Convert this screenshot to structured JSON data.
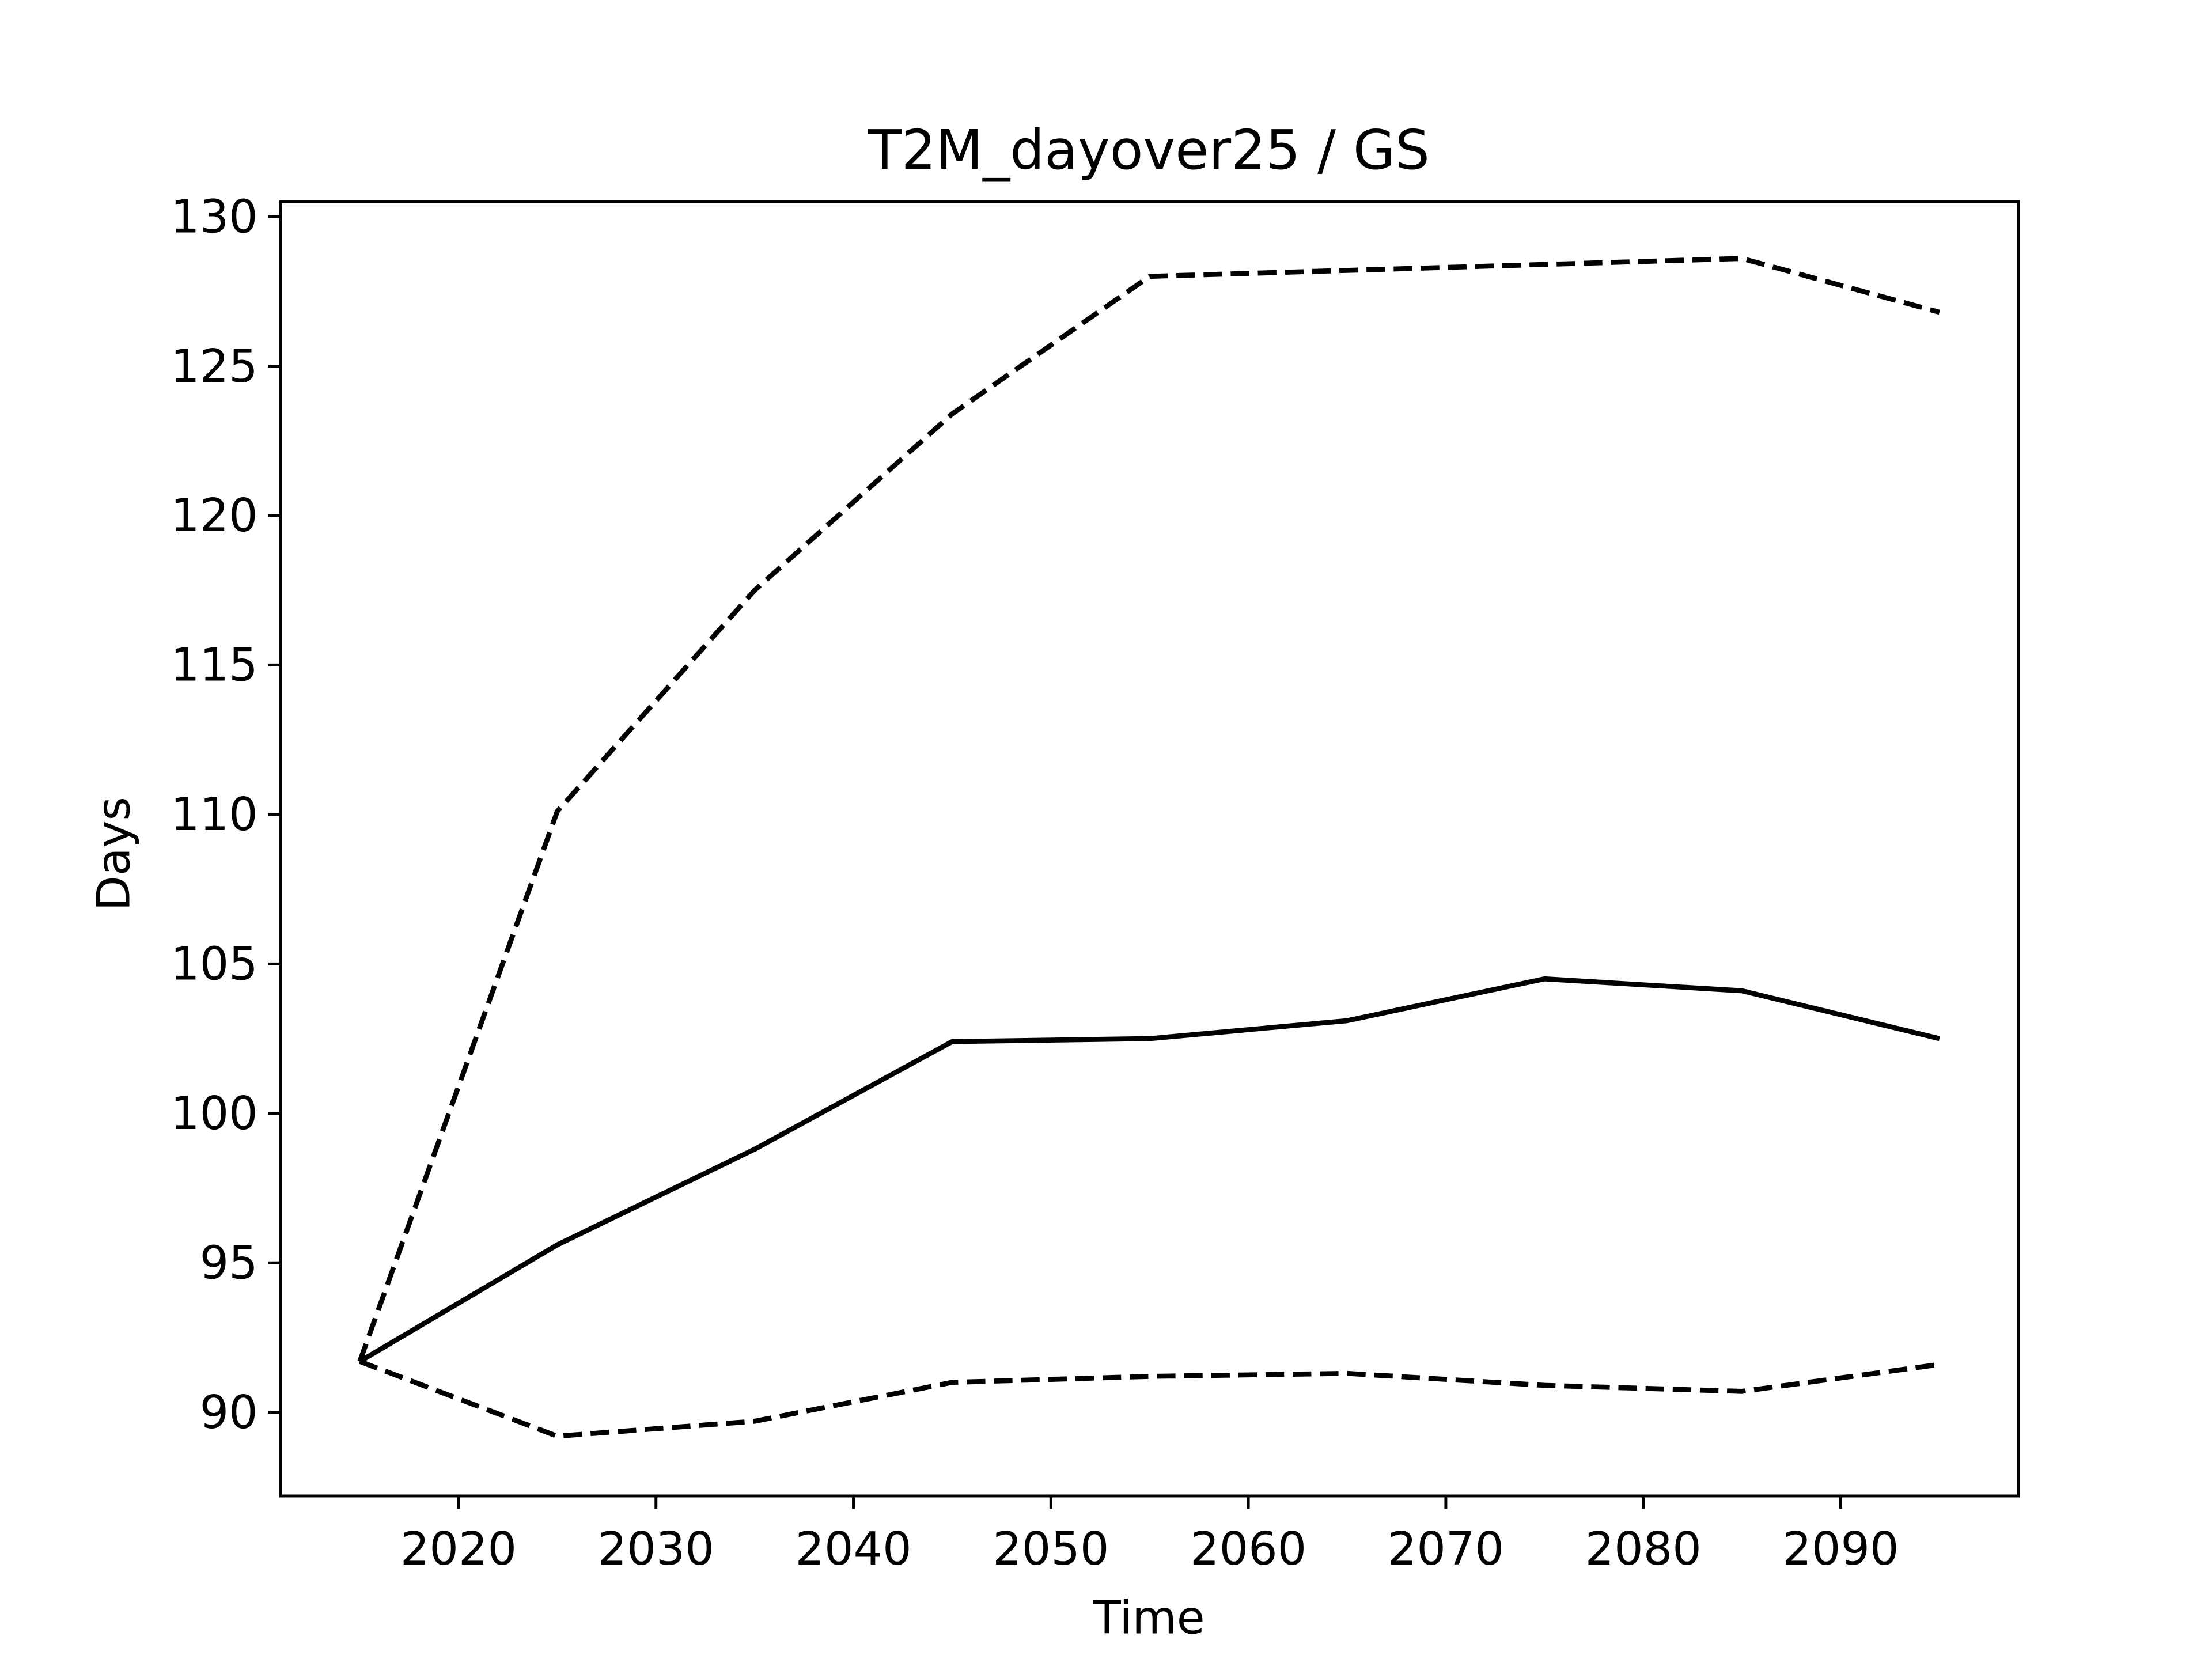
{
  "chart_data": {
    "type": "line",
    "title": "T2M_dayover25 / GS",
    "xlabel": "Time",
    "ylabel": "Days",
    "x": [
      2015,
      2025,
      2035,
      2045,
      2055,
      2065,
      2075,
      2085,
      2095
    ],
    "series": [
      {
        "color": "#000000",
        "linestyle": "solid",
        "values": [
          91.7,
          95.6,
          98.8,
          102.4,
          102.5,
          103.1,
          104.5,
          104.1,
          102.5
        ]
      },
      {
        "color": "#000000",
        "linestyle": "dashed",
        "values": [
          91.7,
          110.1,
          117.5,
          123.4,
          128.0,
          128.2,
          128.4,
          128.6,
          126.8
        ]
      },
      {
        "color": "#000000",
        "linestyle": "dashed",
        "values": [
          91.7,
          89.2,
          89.7,
          91.0,
          91.2,
          91.3,
          90.9,
          90.7,
          91.6
        ]
      }
    ],
    "xlim": [
      2011,
      2099
    ],
    "xticks": [
      2020,
      2030,
      2040,
      2050,
      2060,
      2070,
      2080,
      2090
    ],
    "ylim": [
      87.2,
      130.5
    ],
    "yticks": [
      90,
      95,
      100,
      105,
      110,
      115,
      120,
      125,
      130
    ],
    "grid": false
  }
}
